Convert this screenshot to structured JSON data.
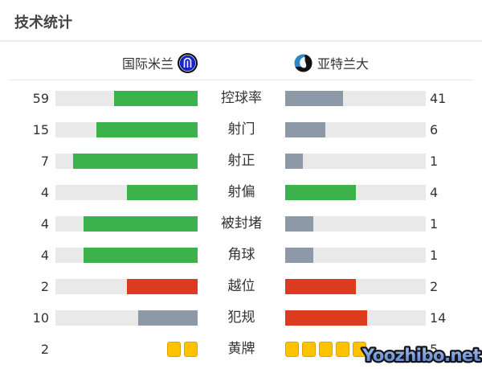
{
  "title": "技术统计",
  "header": {
    "home_team": "国际米兰",
    "away_team": "亚特兰大"
  },
  "watermark": {
    "text": "Yoozhibo.net"
  },
  "colors": {
    "green": "#3cb24c",
    "gray": "#8e99a8",
    "red": "#dd3b20",
    "track": "#e9e9e9",
    "card_fill": "#fdc300",
    "card_border": "#dfa106",
    "watermark_fill": "#7aa3dd",
    "watermark_stroke": "#14141e"
  },
  "chart_data": {
    "type": "bar",
    "subtype": "horizontal-paired-comparison",
    "title": "技术统计",
    "teams": [
      "国际米兰",
      "亚特兰大"
    ],
    "legend_position": "top",
    "bar_rule": "fill fraction = value / (home + away), home bars grow right-to-left, away bars grow left-to-right",
    "rows": [
      {
        "label": "控球率",
        "home": 59,
        "away": 41,
        "home_color": "green",
        "away_color": "gray",
        "display": "bar"
      },
      {
        "label": "射门",
        "home": 15,
        "away": 6,
        "home_color": "green",
        "away_color": "gray",
        "display": "bar"
      },
      {
        "label": "射正",
        "home": 7,
        "away": 1,
        "home_color": "green",
        "away_color": "gray",
        "display": "bar"
      },
      {
        "label": "射偏",
        "home": 4,
        "away": 4,
        "home_color": "green",
        "away_color": "green",
        "display": "bar"
      },
      {
        "label": "被封堵",
        "home": 4,
        "away": 1,
        "home_color": "green",
        "away_color": "gray",
        "display": "bar"
      },
      {
        "label": "角球",
        "home": 4,
        "away": 1,
        "home_color": "green",
        "away_color": "gray",
        "display": "bar"
      },
      {
        "label": "越位",
        "home": 2,
        "away": 2,
        "home_color": "red",
        "away_color": "red",
        "display": "bar"
      },
      {
        "label": "犯规",
        "home": 10,
        "away": 14,
        "home_color": "gray",
        "away_color": "red",
        "display": "bar"
      },
      {
        "label": "黄牌",
        "home": 2,
        "away": 5,
        "home_color": "yellow",
        "away_color": "yellow",
        "display": "cards"
      }
    ]
  }
}
